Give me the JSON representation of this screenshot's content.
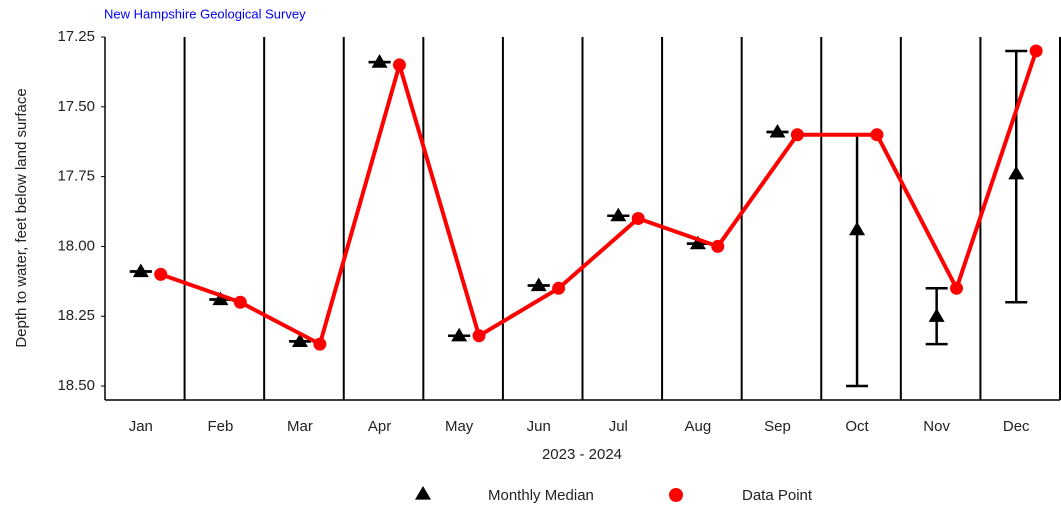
{
  "chart_data": {
    "type": "line",
    "source": "New Hampshire Geological Survey",
    "y_label": "Depth to water, feet below land surface",
    "x_label": "2023 - 2024",
    "categories": [
      "Jan",
      "Feb",
      "Mar",
      "Apr",
      "May",
      "Jun",
      "Jul",
      "Aug",
      "Sep",
      "Oct",
      "Nov",
      "Dec"
    ],
    "ylim": [
      17.25,
      18.55
    ],
    "y_inverted": true,
    "yticks": [
      {
        "value": 17.25,
        "label": "17.25"
      },
      {
        "value": 17.5,
        "label": "17.50"
      },
      {
        "value": 17.75,
        "label": "17.75"
      },
      {
        "value": 18,
        "label": "18.00"
      },
      {
        "value": 18.25,
        "label": "18.25"
      },
      {
        "value": 18.5,
        "label": "18.50"
      }
    ],
    "series": [
      {
        "name": "Monthly Median",
        "color": "#000000",
        "marker": "triangle",
        "values": [
          18.09,
          18.19,
          18.34,
          17.34,
          18.32,
          18.14,
          17.89,
          17.99,
          17.59,
          17.94,
          18.25,
          17.74
        ],
        "range_low": [
          18.09,
          18.19,
          18.34,
          17.34,
          18.32,
          18.14,
          17.89,
          17.99,
          17.59,
          17.6,
          18.15,
          17.3
        ],
        "range_high": [
          18.09,
          18.19,
          18.34,
          17.34,
          18.32,
          18.14,
          17.89,
          17.99,
          17.59,
          18.5,
          18.35,
          18.2
        ]
      },
      {
        "name": "Data Point",
        "color": "#ff0000",
        "marker": "circle",
        "values": [
          18.1,
          18.2,
          18.35,
          17.35,
          18.32,
          18.15,
          17.9,
          18.0,
          17.6,
          17.6,
          18.15,
          17.3
        ]
      }
    ]
  }
}
